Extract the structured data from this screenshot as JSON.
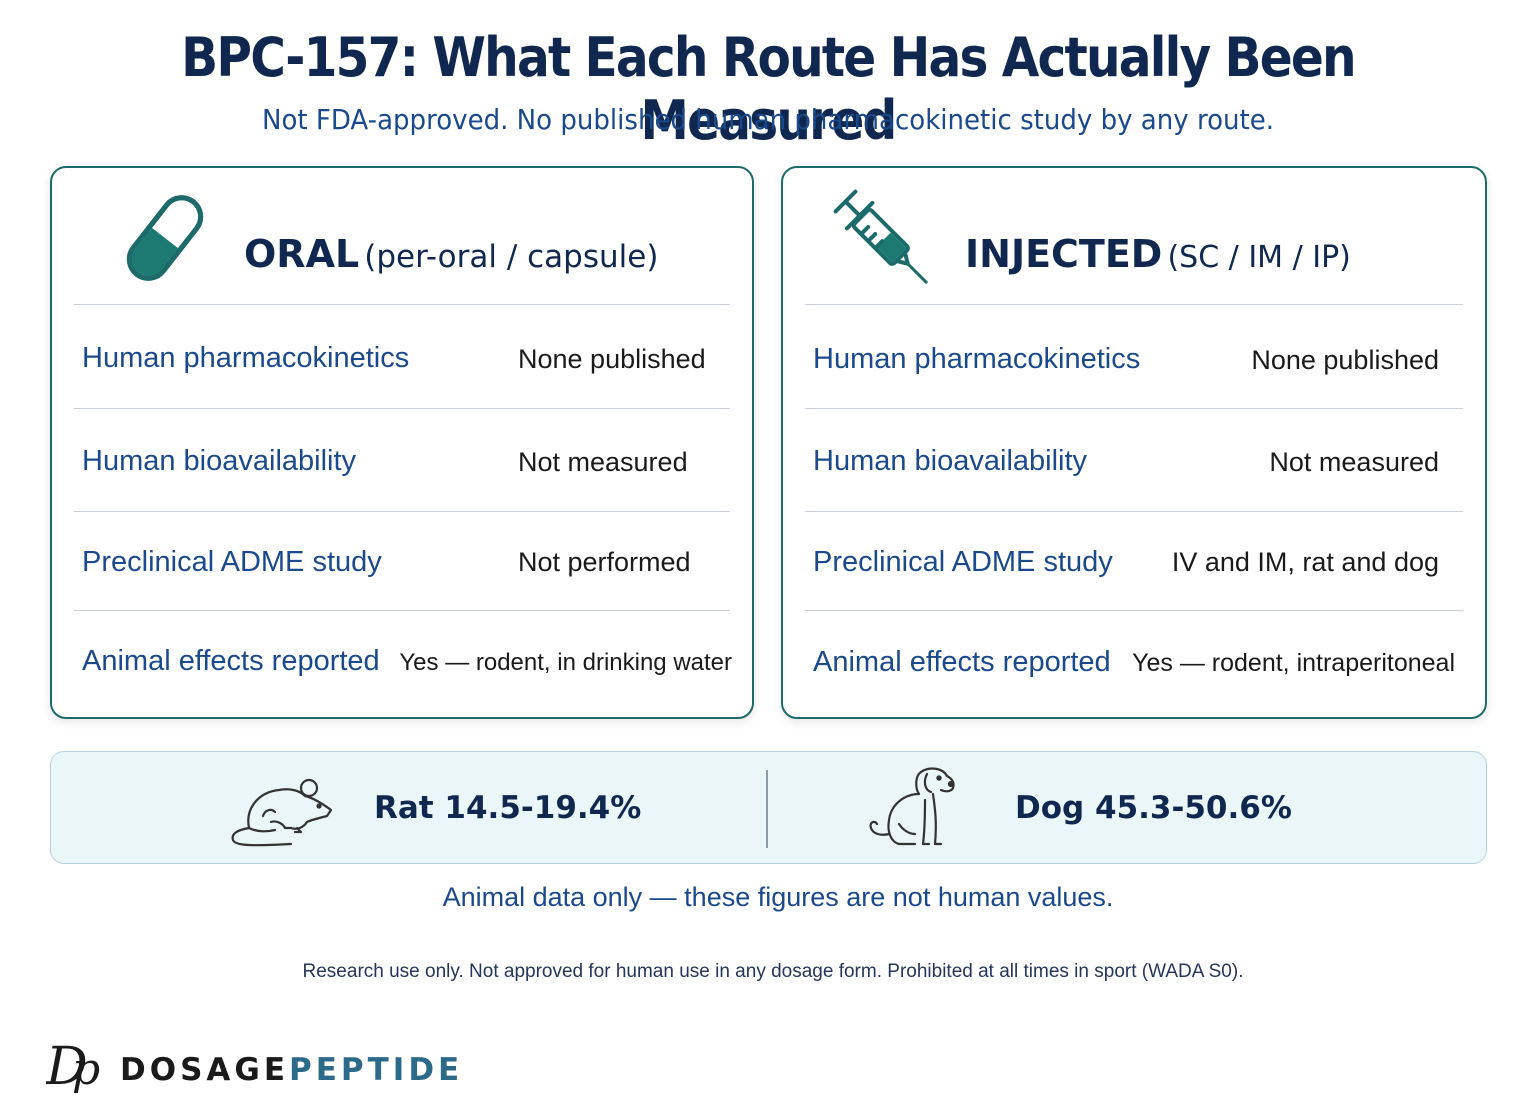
{
  "header": {
    "title": "BPC-157: What Each Route Has Actually Been Measured",
    "subtitle": "Not FDA-approved. No published human pharmacokinetic study by any route."
  },
  "colors": {
    "navy": "#10284f",
    "blue": "#1a4a8c",
    "teal": "#1c6b6a",
    "panel": "#eaf6f8"
  },
  "oral": {
    "icon": "capsule-icon",
    "title": "ORAL",
    "subtitle": "(per-oral / capsule)",
    "rows": [
      {
        "label": "Human pharmacokinetics",
        "value": "None published"
      },
      {
        "label": "Human bioavailability",
        "value": "Not measured"
      },
      {
        "label": "Preclinical ADME study",
        "value": "Not performed"
      },
      {
        "label": "Animal effects reported",
        "value": "Yes — rodent, in drinking water"
      }
    ]
  },
  "injected": {
    "icon": "syringe-icon",
    "title": "INJECTED",
    "subtitle": "(SC / IM / IP)",
    "rows": [
      {
        "label": "Human pharmacokinetics",
        "value": "None published"
      },
      {
        "label": "Human bioavailability",
        "value": "Not measured"
      },
      {
        "label": "Preclinical ADME study",
        "value": "IV and IM, rat and dog"
      },
      {
        "label": "Animal effects reported",
        "value": "Yes — rodent, intraperitoneal"
      }
    ]
  },
  "bioavailability": {
    "rat": {
      "icon": "rat-icon",
      "text": "Rat 14.5-19.4%"
    },
    "dog": {
      "icon": "dog-icon",
      "text": "Dog 45.3-50.6%"
    }
  },
  "animal_note": "Animal data only — these figures are not human values.",
  "disclaimer": "Research use only. Not approved for human use in any dosage form. Prohibited at all times in sport (WADA S0).",
  "brand": {
    "logo": "Dp",
    "name_part1": "DOSAGE",
    "name_part2": "PEPTIDE"
  }
}
